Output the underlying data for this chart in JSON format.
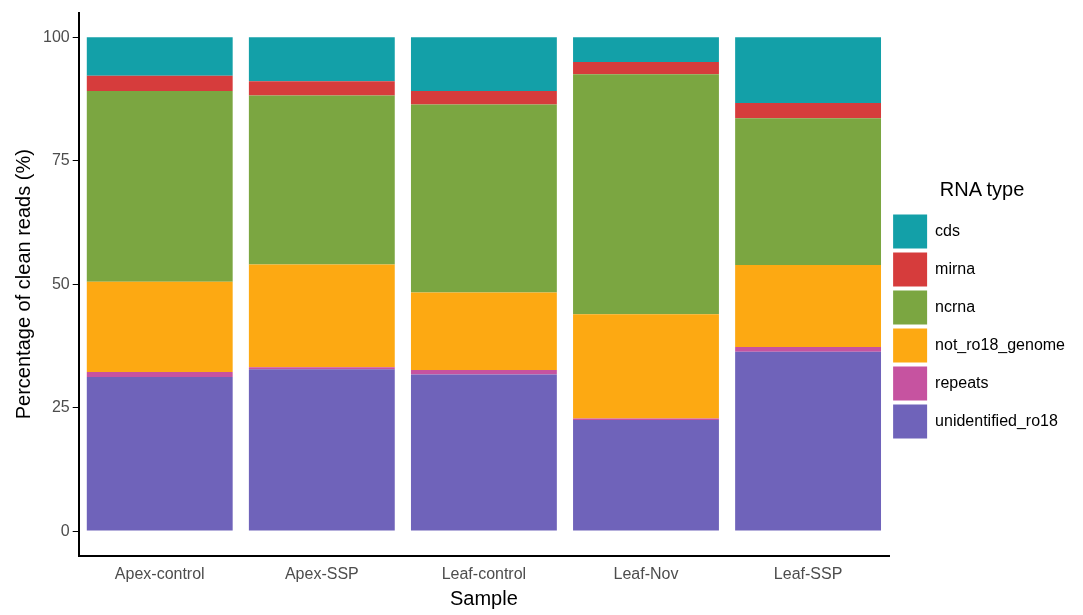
{
  "chart_data": {
    "type": "bar",
    "stacked": true,
    "xlabel": "Sample",
    "ylabel": "Percentage of clean reads (%)",
    "legend_title": "RNA type",
    "legend": "right",
    "grid": false,
    "categories": [
      "Apex-control",
      "Apex-SSP",
      "Leaf-control",
      "Leaf-Nov",
      "Leaf-SSP"
    ],
    "ylim": [
      -5,
      105
    ],
    "yticks": [
      0,
      25,
      50,
      75,
      100
    ],
    "series": [
      {
        "name": "unidentified_ro18",
        "color": "#6f63ba",
        "values": [
          31.2,
          32.8,
          31.7,
          22.5,
          36.3
        ]
      },
      {
        "name": "repeats",
        "color": "#c653a0",
        "values": [
          1.0,
          0.4,
          0.9,
          0.3,
          1.0
        ]
      },
      {
        "name": "not_ro18_genome",
        "color": "#fda912",
        "values": [
          18.3,
          20.8,
          15.7,
          21.1,
          16.6
        ]
      },
      {
        "name": "ncrna",
        "color": "#7ba641",
        "values": [
          38.6,
          34.2,
          38.1,
          48.6,
          29.7
        ]
      },
      {
        "name": "mirna",
        "color": "#d63c3c",
        "values": [
          3.1,
          2.9,
          2.7,
          2.5,
          3.1
        ]
      },
      {
        "name": "cds",
        "color": "#13a0a8",
        "values": [
          7.8,
          8.9,
          10.9,
          5.0,
          13.3
        ]
      }
    ]
  }
}
